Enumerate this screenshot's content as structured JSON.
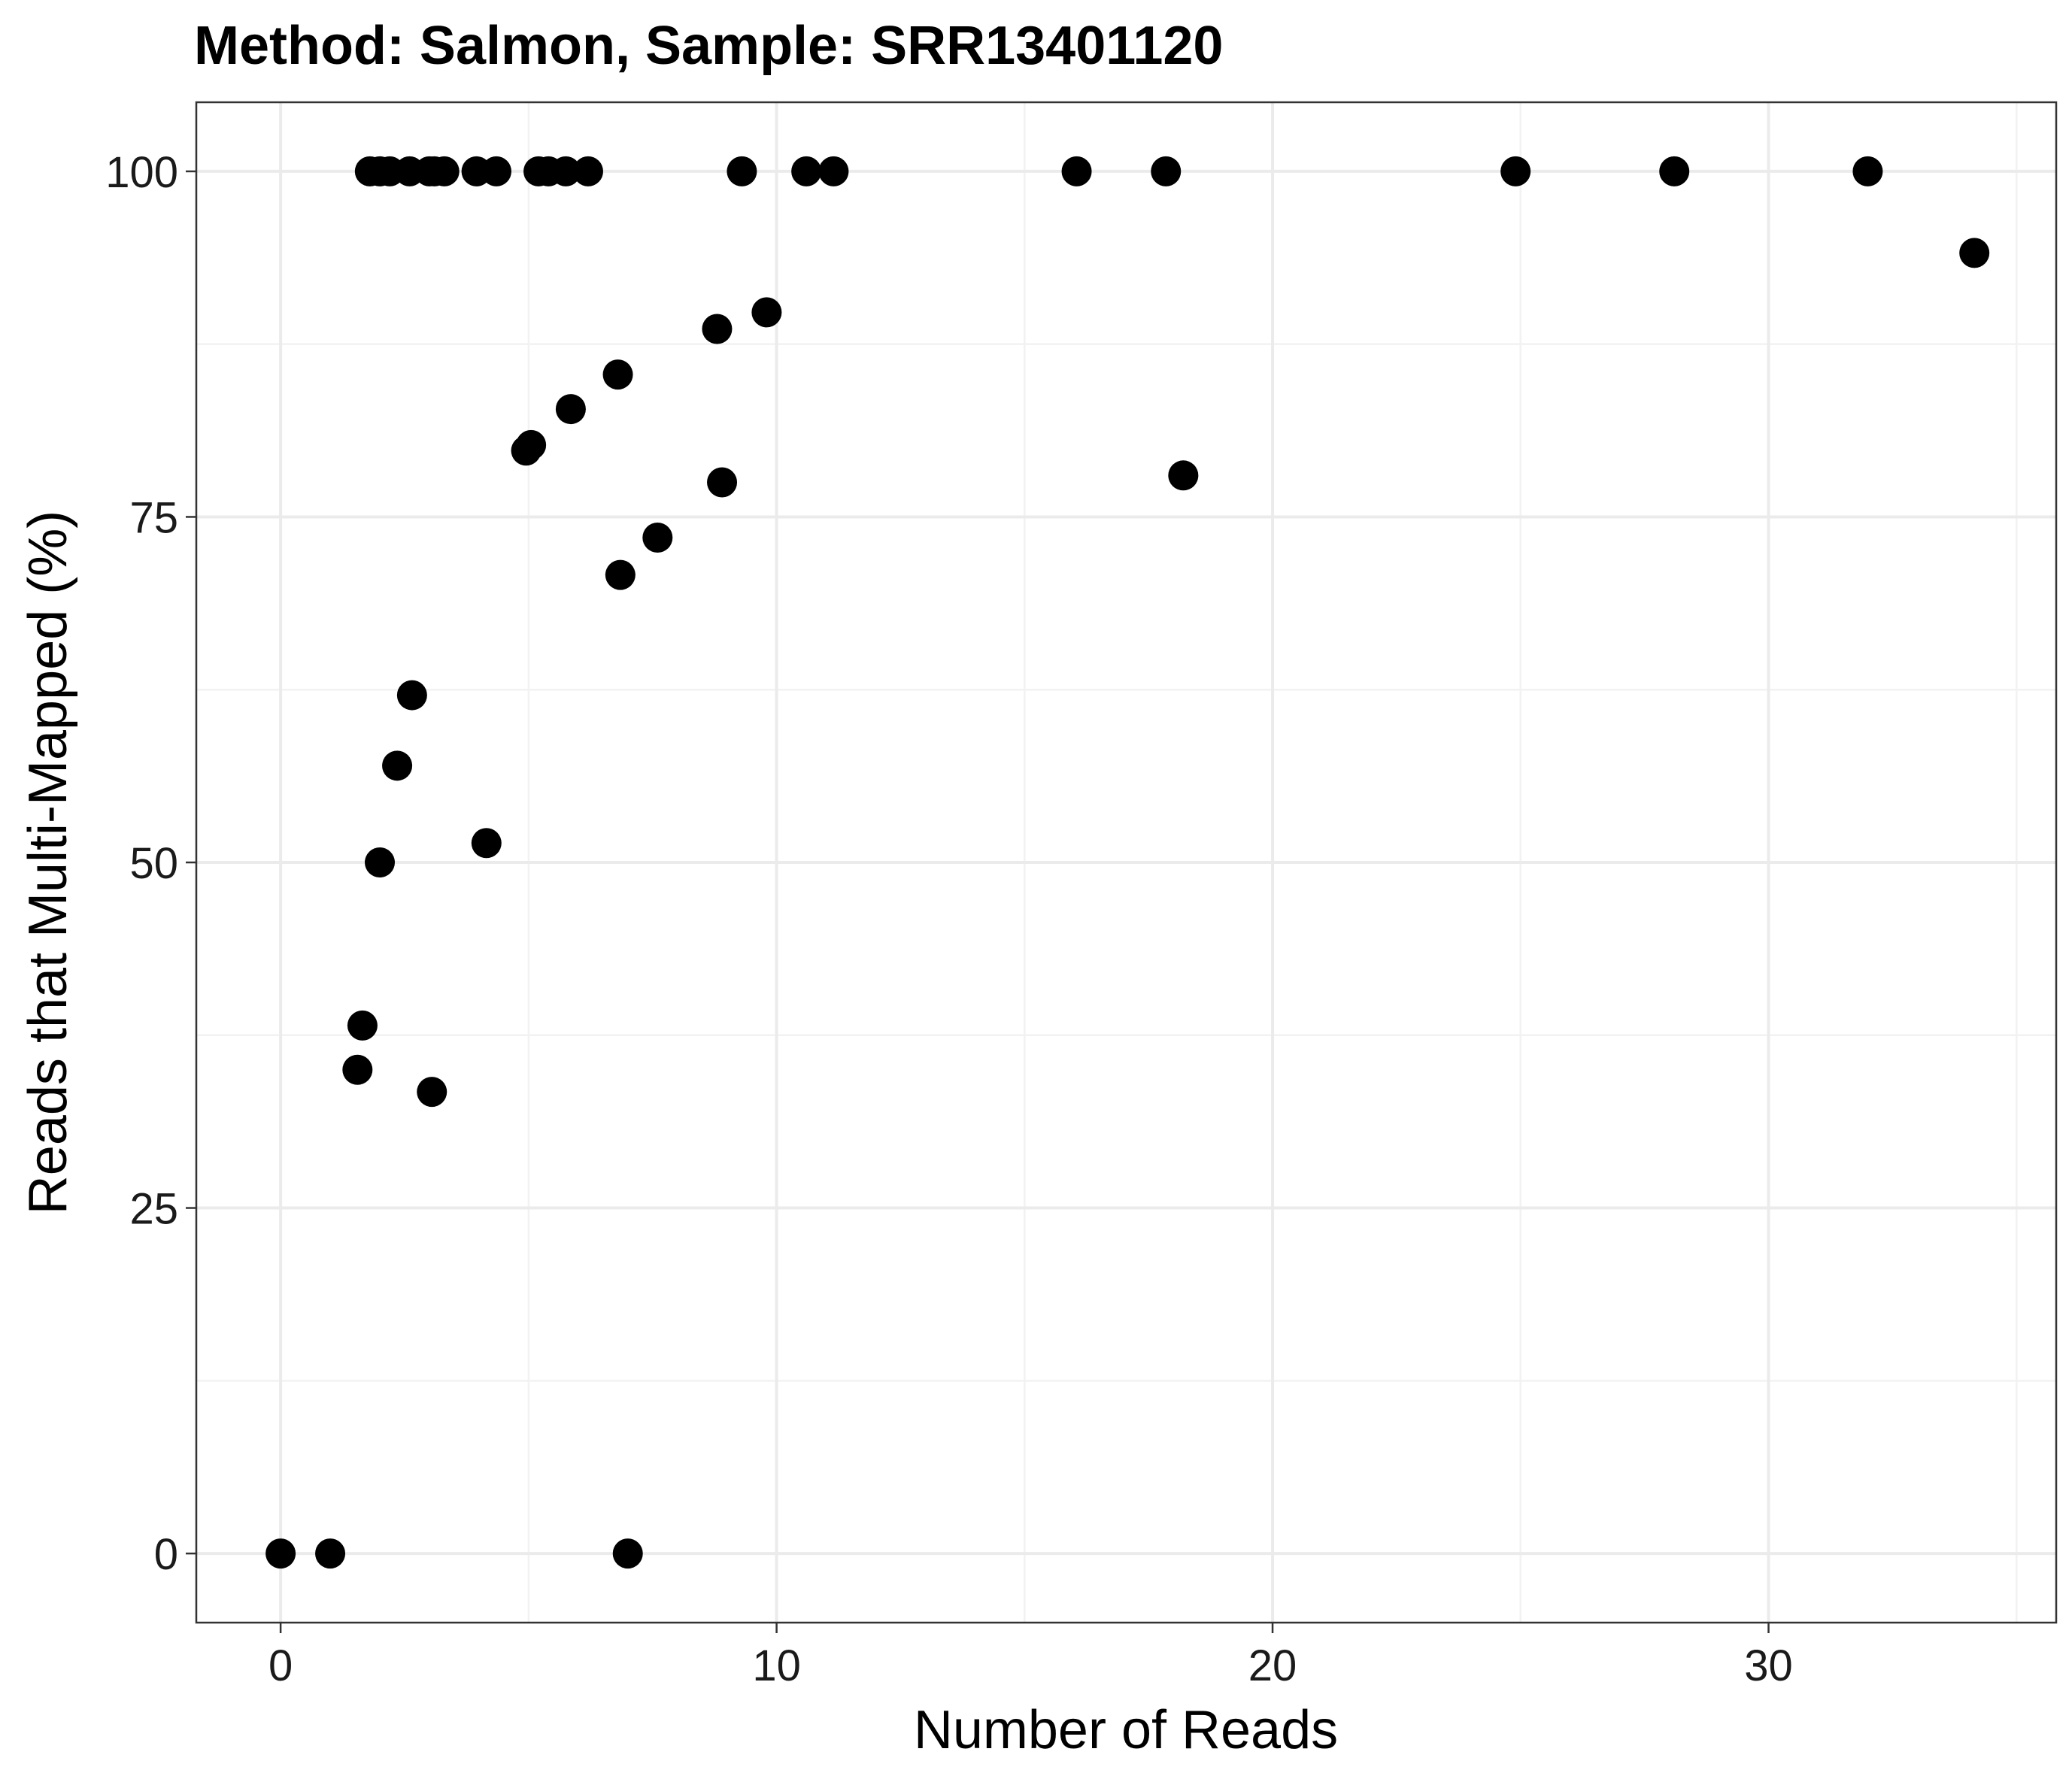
{
  "chart_data": {
    "type": "scatter",
    "title": "Method: Salmon, Sample: SRR13401120",
    "xlabel": "Number of Reads",
    "ylabel": "Reads that Multi-Mapped (%)",
    "xlim": [
      -1.7,
      35.8
    ],
    "ylim": [
      -5,
      105
    ],
    "x_ticks": [
      0,
      10,
      20,
      30
    ],
    "y_ticks": [
      0,
      25,
      50,
      75,
      100
    ],
    "x_minor_ticks": [
      5,
      15,
      25,
      35
    ],
    "y_minor_ticks": [
      12.5,
      37.5,
      62.5,
      87.5
    ],
    "grid": true,
    "legend": "none",
    "point_color": "#000000",
    "series": [
      {
        "x": [
          1.8,
          2.0,
          2.2,
          2.6,
          3.0,
          3.1,
          3.3,
          3.95,
          4.35,
          5.2,
          5.4,
          5.75,
          6.2,
          9.3,
          10.6,
          11.15,
          16.05,
          17.85,
          24.9,
          28.1,
          32.0,
          34.15,
          9.8,
          8.8,
          6.8,
          5.85,
          5.05,
          4.95,
          8.9,
          18.2,
          7.6,
          6.85,
          2.65,
          2.35,
          2.0,
          4.15,
          1.65,
          1.55,
          3.05,
          0.0,
          1.0,
          7.0
        ],
        "y": [
          100,
          100,
          100,
          100,
          100,
          100,
          100,
          100,
          100,
          100,
          100,
          100,
          100,
          100,
          100,
          100,
          100,
          100,
          100,
          100,
          100,
          94.1,
          89.8,
          88.6,
          85.3,
          82.8,
          80.2,
          79.8,
          77.5,
          78.0,
          73.5,
          70.8,
          62.1,
          57.0,
          50.0,
          51.4,
          38.2,
          35.0,
          33.4,
          0.0,
          0.0,
          0.0
        ]
      }
    ]
  }
}
